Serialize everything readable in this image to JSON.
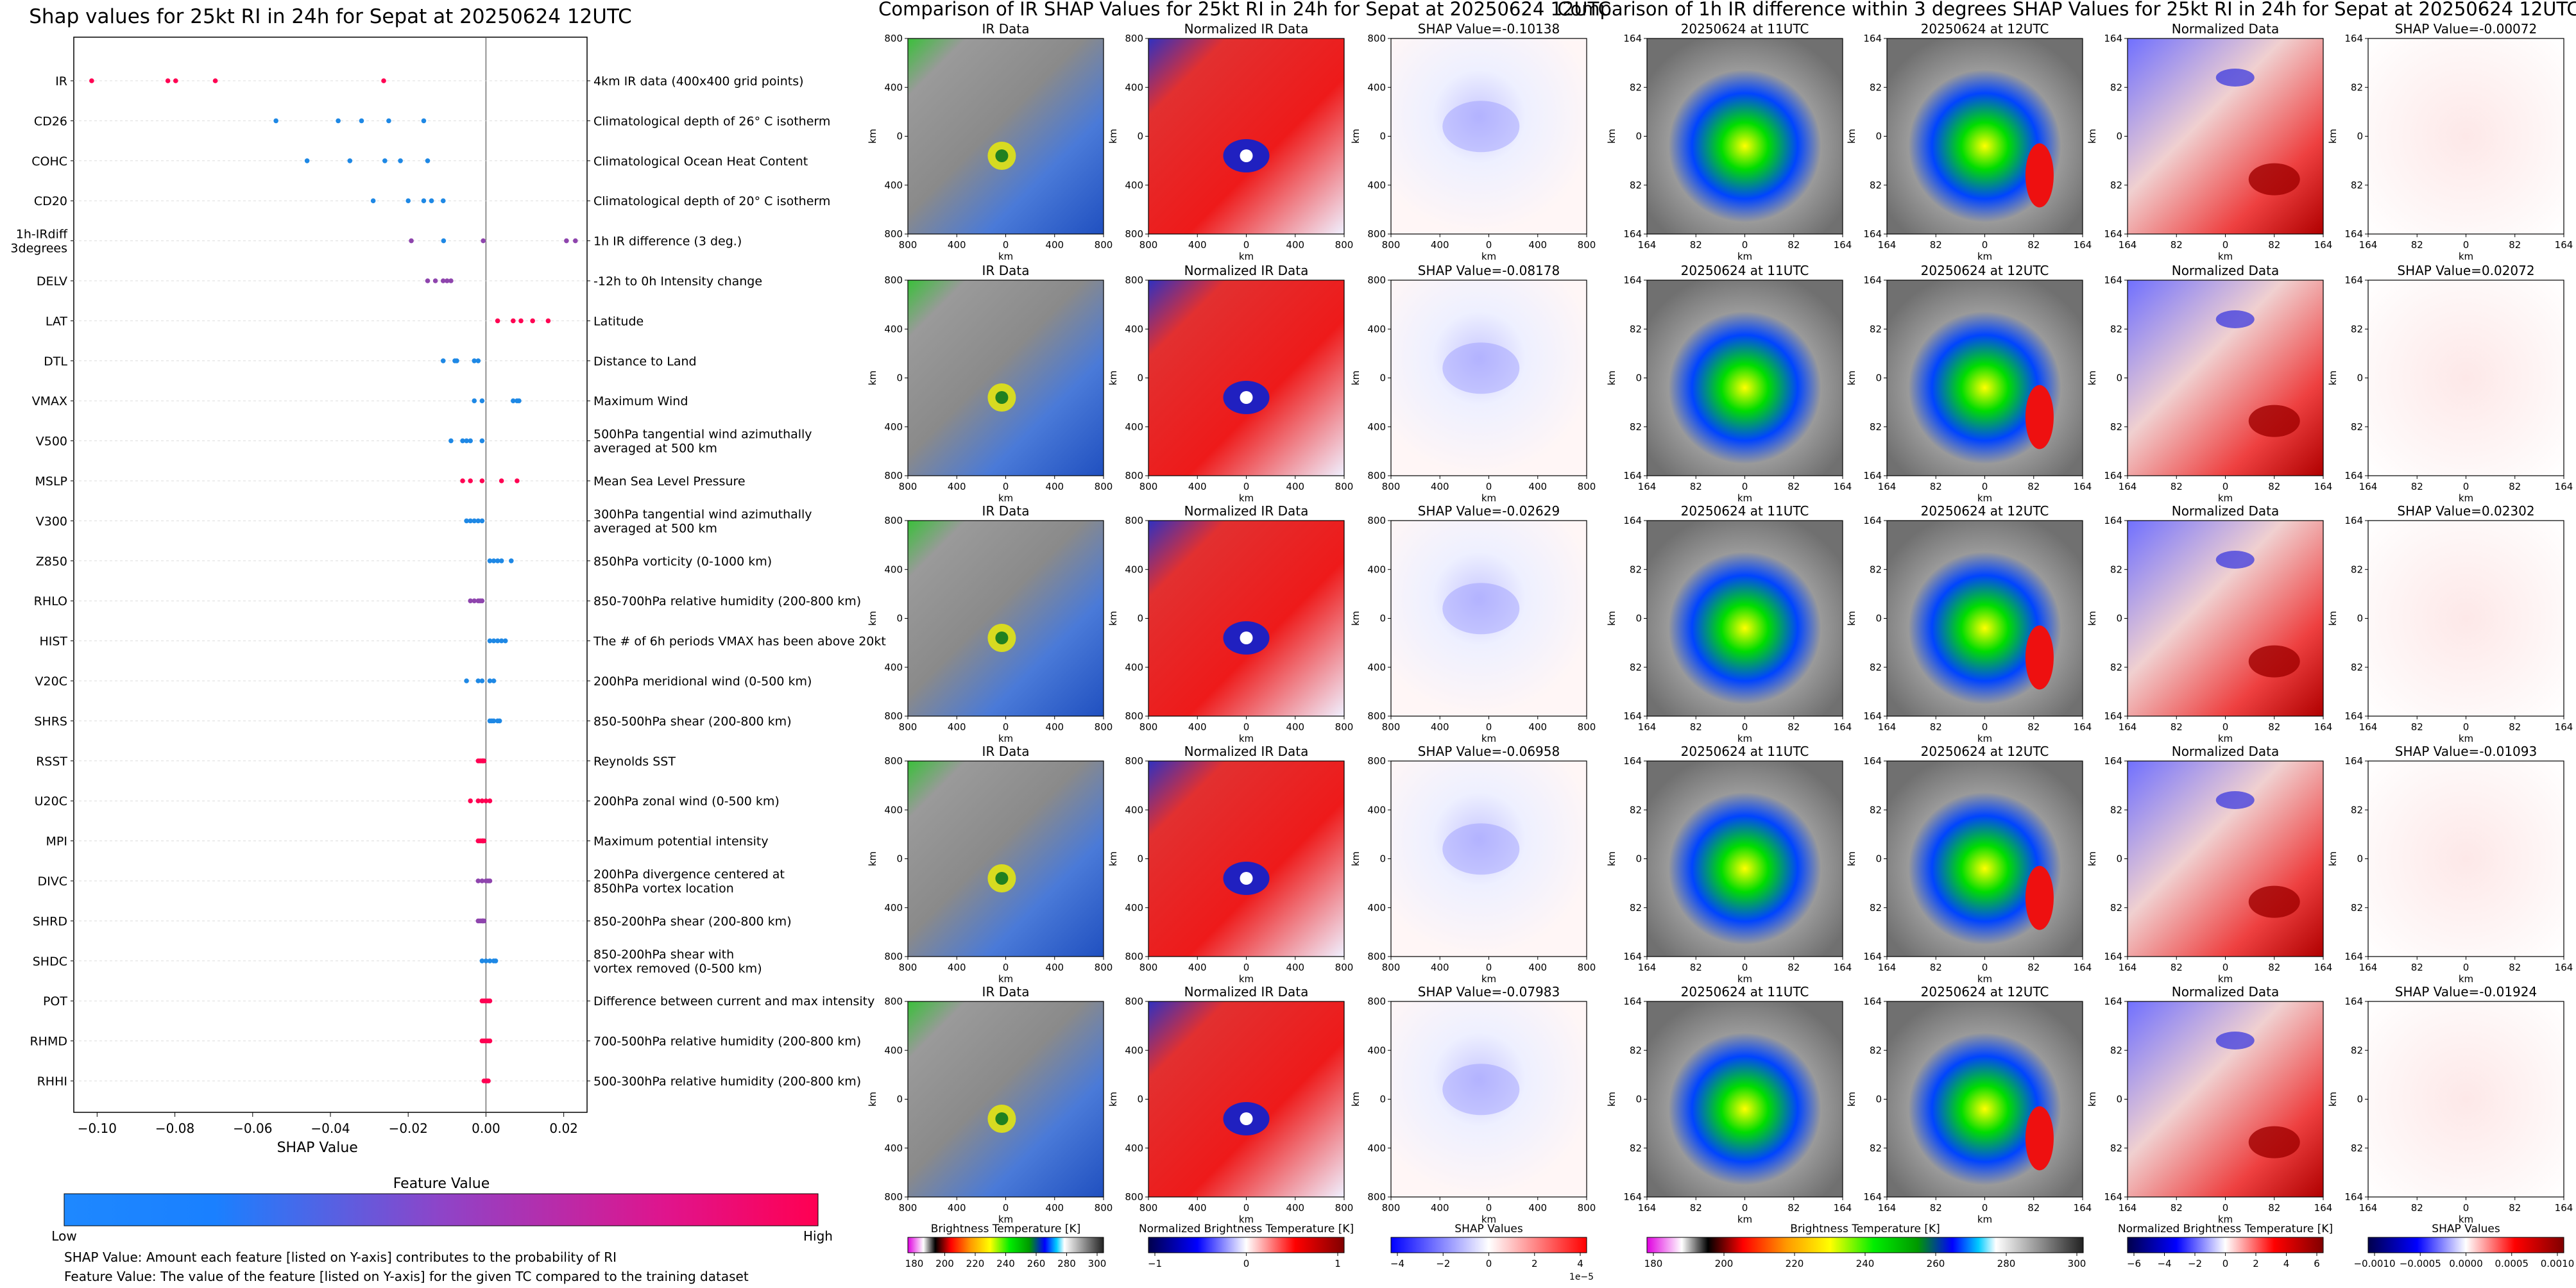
{
  "left_panel": {
    "title": "Shap values for 25kt RI in 24h for Sepat at 20250624 12UTC",
    "xlabel": "SHAP Value",
    "colorbar_title": "Feature Value",
    "low_label": "Low",
    "high_label": "High",
    "note_shap": "SHAP Value: Amount each feature [listed on Y-axis] contributes to the probability of RI",
    "note_feature": "Feature Value: The value of the feature [listed on Y-axis] for the given TC compared to the training dataset",
    "colors": {
      "low": "#1e88e5",
      "mid": "#8e44ad",
      "high": "#ff0052"
    }
  },
  "middle_panel": {
    "title": "Comparison of IR SHAP Values for 25kt RI in 24h for Sepat at 20250624 12UTC",
    "col_titles": [
      "IR Data",
      "Normalized IR Data"
    ],
    "shap_titles": [
      "SHAP Value=-0.10138",
      "SHAP Value=-0.08178",
      "SHAP Value=-0.02629",
      "SHAP Value=-0.06958",
      "SHAP Value=-0.07983"
    ],
    "tick_labels": [
      "800",
      "400",
      "0",
      "400",
      "800"
    ],
    "axis_label": "km",
    "colorbars": [
      {
        "label": "Brightness Temperature [K]",
        "ticks": [
          "180",
          "200",
          "220",
          "240",
          "260",
          "280",
          "300"
        ]
      },
      {
        "label": "Normalized Brightness Temperature [K]",
        "ticks": [
          "−1",
          "0",
          "1"
        ]
      },
      {
        "label": "SHAP Values",
        "ticks": [
          "−4",
          "−2",
          "0",
          "2",
          "4"
        ],
        "offset": "1e−5"
      }
    ]
  },
  "right_panel": {
    "title": "Comparison of 1h IR difference within 3 degrees SHAP Values for 25kt RI in 24h for Sepat at 20250624 12UTC",
    "col_titles": [
      "20250624 at 11UTC",
      "20250624 at 12UTC",
      "Normalized Data"
    ],
    "shap_titles": [
      "SHAP Value=-0.00072",
      "SHAP Value=0.02072",
      "SHAP Value=0.02302",
      "SHAP Value=-0.01093",
      "SHAP Value=-0.01924"
    ],
    "tick_labels": [
      "164",
      "82",
      "0",
      "82",
      "164"
    ],
    "axis_label": "km",
    "colorbars": [
      {
        "label": "Brightness Temperature [K]",
        "ticks": [
          "180",
          "200",
          "220",
          "240",
          "260",
          "280",
          "300"
        ]
      },
      {
        "label": "Normalized Brightness Temperature [K]",
        "ticks": [
          "−6",
          "−4",
          "−2",
          "0",
          "2",
          "4",
          "6"
        ]
      },
      {
        "label": "SHAP Values",
        "ticks": [
          "−0.0010",
          "−0.0005",
          "0.0000",
          "0.0005",
          "0.0010"
        ]
      }
    ]
  },
  "chart_data": {
    "type": "scatter",
    "title": "Shap values for 25kt RI in 24h for Sepat at 20250624 12UTC",
    "xlabel": "SHAP Value",
    "ylabel": "",
    "xlim": [
      -0.106,
      0.026
    ],
    "xticks": [
      -0.1,
      -0.08,
      -0.06,
      -0.04,
      -0.02,
      0.0,
      0.02
    ],
    "xtick_labels": [
      "−0.10",
      "−0.08",
      "−0.06",
      "−0.04",
      "−0.02",
      "0.00",
      "0.02"
    ],
    "features": [
      {
        "name": "IR",
        "desc": "4km IR data (400x400 grid points)",
        "shap": [
          -0.1014,
          -0.0818,
          -0.0798,
          -0.0696,
          -0.0263
        ],
        "fv": [
          1,
          1,
          1,
          1,
          1
        ]
      },
      {
        "name": "CD26",
        "desc": "Climatological depth of 26° C isotherm",
        "shap": [
          -0.054,
          -0.038,
          -0.032,
          -0.025,
          -0.016
        ],
        "fv": [
          0,
          0,
          0,
          0,
          0
        ]
      },
      {
        "name": "COHC",
        "desc": "Climatological Ocean Heat Content",
        "shap": [
          -0.046,
          -0.035,
          -0.026,
          -0.022,
          -0.015
        ],
        "fv": [
          0,
          0,
          0,
          0,
          0
        ]
      },
      {
        "name": "CD20",
        "desc": "Climatological depth of 20° C isotherm",
        "shap": [
          -0.029,
          -0.02,
          -0.016,
          -0.014,
          -0.011
        ],
        "fv": [
          0.1,
          0.1,
          0.1,
          0.1,
          0.1
        ]
      },
      {
        "name": "1h-IRdiff\n3degrees",
        "desc": "1h IR difference (3 deg.)",
        "shap": [
          -0.0192,
          -0.0109,
          -0.0007,
          0.0207,
          0.023
        ],
        "fv": [
          0.45,
          0.3,
          0.5,
          0.6,
          0.55
        ]
      },
      {
        "name": "DELV",
        "desc": "-12h to 0h Intensity change",
        "shap": [
          -0.015,
          -0.013,
          -0.011,
          -0.01,
          -0.009
        ],
        "fv": [
          0.45,
          0.45,
          0.45,
          0.45,
          0.45
        ]
      },
      {
        "name": "LAT",
        "desc": "Latitude",
        "shap": [
          0.003,
          0.007,
          0.009,
          0.012,
          0.016
        ],
        "fv": [
          1,
          1,
          1,
          1,
          1
        ]
      },
      {
        "name": "DTL",
        "desc": "Distance to Land",
        "shap": [
          -0.011,
          -0.008,
          -0.0075,
          -0.003,
          -0.002
        ],
        "fv": [
          0.05,
          0.05,
          0.05,
          0.05,
          0.05
        ]
      },
      {
        "name": "VMAX",
        "desc": "Maximum Wind",
        "shap": [
          -0.003,
          -0.001,
          0.007,
          0.008,
          0.0085
        ],
        "fv": [
          0.05,
          0.05,
          0.05,
          0.05,
          0.05
        ]
      },
      {
        "name": "V500",
        "desc": "500hPa tangential wind azimuthally\naveraged at 500 km",
        "shap": [
          -0.009,
          -0.006,
          -0.005,
          -0.004,
          -0.001
        ],
        "fv": [
          0.05,
          0.05,
          0.05,
          0.05,
          0.05
        ]
      },
      {
        "name": "MSLP",
        "desc": "Mean Sea Level Pressure",
        "shap": [
          -0.006,
          -0.004,
          -0.001,
          0.004,
          0.008
        ],
        "fv": [
          1,
          1,
          1,
          1,
          1
        ]
      },
      {
        "name": "V300",
        "desc": "300hPa tangential wind azimuthally\naveraged at 500 km",
        "shap": [
          -0.005,
          -0.004,
          -0.003,
          -0.002,
          -0.001
        ],
        "fv": [
          0.05,
          0.05,
          0.05,
          0.05,
          0.05
        ]
      },
      {
        "name": "Z850",
        "desc": "850hPa vorticity (0-1000 km)",
        "shap": [
          0.001,
          0.002,
          0.003,
          0.004,
          0.0065
        ],
        "fv": [
          0.05,
          0.05,
          0.05,
          0.05,
          0.05
        ]
      },
      {
        "name": "RHLO",
        "desc": "850-700hPa relative humidity (200-800 km)",
        "shap": [
          -0.004,
          -0.003,
          -0.002,
          -0.0015,
          -0.001
        ],
        "fv": [
          0.5,
          0.5,
          0.5,
          0.5,
          0.5
        ]
      },
      {
        "name": "HIST",
        "desc": "The # of 6h periods VMAX has been above 20kt",
        "shap": [
          0.001,
          0.002,
          0.003,
          0.004,
          0.005
        ],
        "fv": [
          0.05,
          0.05,
          0.05,
          0.05,
          0.05
        ]
      },
      {
        "name": "V20C",
        "desc": "200hPa meridional wind (0-500 km)",
        "shap": [
          -0.005,
          -0.002,
          -0.001,
          0.001,
          0.002
        ],
        "fv": [
          0.05,
          0.05,
          0.05,
          0.05,
          0.05
        ]
      },
      {
        "name": "SHRS",
        "desc": "850-500hPa shear (200-800 km)",
        "shap": [
          0.001,
          0.0015,
          0.002,
          0.003,
          0.0035
        ],
        "fv": [
          0.05,
          0.05,
          0.05,
          0.05,
          0.05
        ]
      },
      {
        "name": "RSST",
        "desc": "Reynolds SST",
        "shap": [
          -0.002,
          -0.0015,
          -0.001,
          -0.0008,
          -0.0005
        ],
        "fv": [
          0.8,
          0.8,
          0.8,
          0.8,
          0.8
        ]
      },
      {
        "name": "U20C",
        "desc": "200hPa zonal wind (0-500 km)",
        "shap": [
          -0.004,
          -0.002,
          -0.001,
          0.0,
          0.001
        ],
        "fv": [
          0.8,
          0.8,
          0.8,
          0.8,
          0.8
        ]
      },
      {
        "name": "MPI",
        "desc": "Maximum potential intensity",
        "shap": [
          -0.002,
          -0.0015,
          -0.001,
          -0.0008,
          -0.0005
        ],
        "fv": [
          0.8,
          0.8,
          0.8,
          0.8,
          0.8
        ]
      },
      {
        "name": "DIVC",
        "desc": "200hPa divergence centered at\n850hPa vortex location",
        "shap": [
          -0.002,
          -0.001,
          0.0,
          0.0005,
          0.001
        ],
        "fv": [
          0.5,
          0.5,
          0.5,
          0.5,
          0.5
        ]
      },
      {
        "name": "SHRD",
        "desc": "850-200hPa shear (200-800 km)",
        "shap": [
          -0.002,
          -0.0015,
          -0.001,
          -0.0008,
          -0.0005
        ],
        "fv": [
          0.5,
          0.5,
          0.5,
          0.5,
          0.5
        ]
      },
      {
        "name": "SHDC",
        "desc": "850-200hPa shear with\nvortex removed (0-500 km)",
        "shap": [
          -0.001,
          0.0,
          0.001,
          0.002,
          0.0025
        ],
        "fv": [
          0.3,
          0.3,
          0.3,
          0.3,
          0.3
        ]
      },
      {
        "name": "POT",
        "desc": "Difference between current and max intensity",
        "shap": [
          -0.001,
          -0.0005,
          0.0,
          0.0005,
          0.001
        ],
        "fv": [
          0.85,
          0.85,
          0.85,
          0.85,
          0.85
        ]
      },
      {
        "name": "RHMD",
        "desc": "700-500hPa relative humidity (200-800 km)",
        "shap": [
          -0.001,
          -0.0005,
          0.0,
          0.0005,
          0.001
        ],
        "fv": [
          0.8,
          0.8,
          0.8,
          0.8,
          0.8
        ]
      },
      {
        "name": "RHHI",
        "desc": "500-300hPa relative humidity (200-800 km)",
        "shap": [
          -0.0005,
          0.0,
          0.0002,
          0.0004,
          0.0006
        ],
        "fv": [
          0.8,
          0.8,
          0.8,
          0.8,
          0.8
        ]
      }
    ]
  }
}
